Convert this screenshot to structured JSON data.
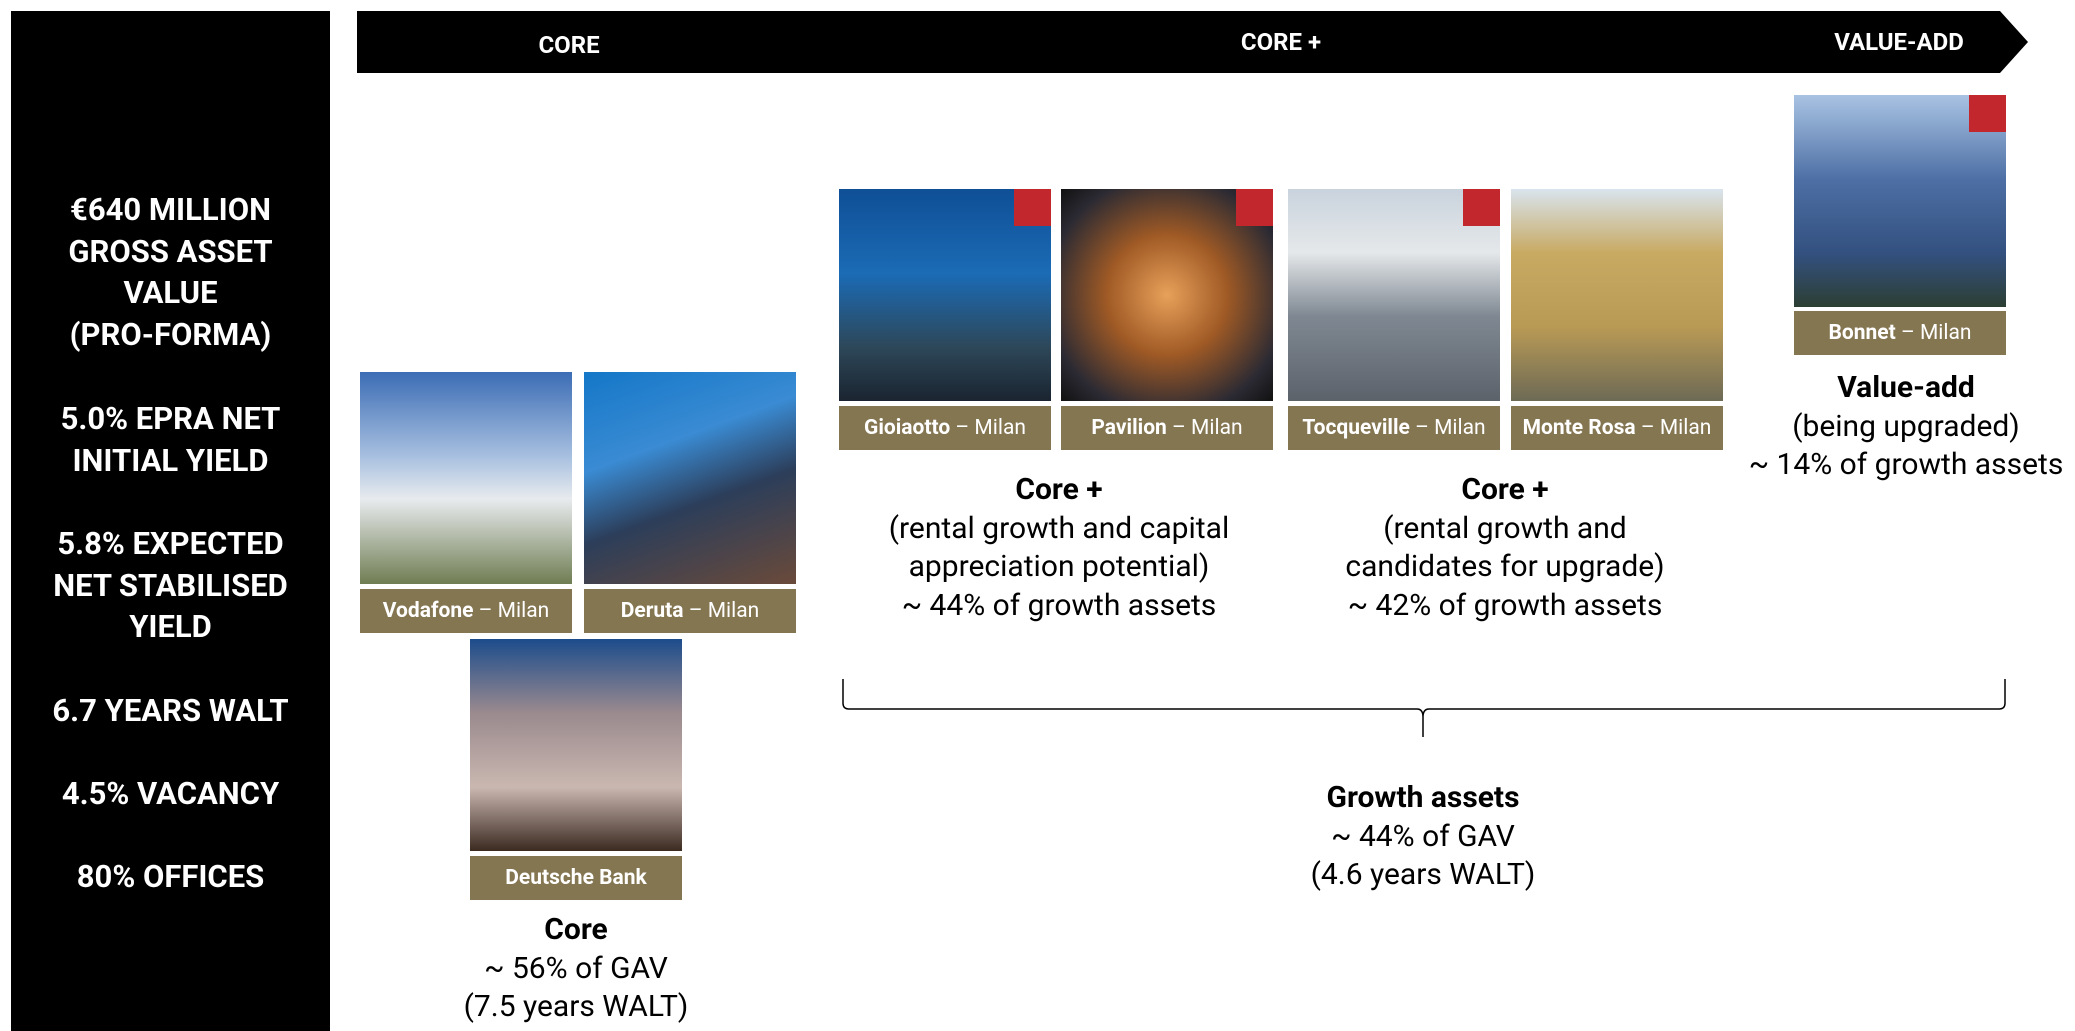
{
  "sidebar": {
    "stats": [
      [
        "€640 MILLION",
        "GROSS ASSET",
        "VALUE",
        "(PRO-FORMA)"
      ],
      [
        "5.0% EPRA NET",
        "INITIAL YIELD"
      ],
      [
        "5.8% EXPECTED",
        "NET STABILISED",
        "YIELD"
      ],
      [
        "6.7 YEARS WALT"
      ],
      [
        "4.5% VACANCY"
      ],
      [
        "80% OFFICES"
      ]
    ]
  },
  "banner": [
    "CORE",
    "CORE +",
    "VALUE-ADD"
  ],
  "assets": [
    {
      "name": "Vodafone",
      "location": "– Milan"
    },
    {
      "name": "Deruta",
      "location": "– Milan"
    },
    {
      "name": "Deutsche Bank"
    },
    {
      "name": "Gioiaotto",
      "location": "– Milan"
    },
    {
      "name": "Pavilion",
      "location": "– Milan"
    },
    {
      "name": "Tocqueville",
      "location": "– Milan"
    },
    {
      "name": "Monte Rosa",
      "location": "– Milan"
    },
    {
      "name": "Bonnet",
      "location": "– Milan"
    }
  ],
  "groups": [
    {
      "title": "Core",
      "lines": [
        "~ 56% of GAV",
        "(7.5 years WALT)"
      ]
    },
    {
      "title": "Core +",
      "lines": [
        "(rental growth and capital",
        "appreciation potential)",
        "~ 44% of growth assets"
      ]
    },
    {
      "title": "Core +",
      "lines": [
        "(rental growth and",
        "candidates for upgrade)",
        "~ 42% of growth assets"
      ]
    },
    {
      "title": "Value-add",
      "lines": [
        "(being upgraded)",
        "~ 14% of growth assets"
      ]
    },
    {
      "title": "Growth assets",
      "lines": [
        "~ 44% of GAV",
        "(4.6 years WALT)"
      ]
    }
  ]
}
